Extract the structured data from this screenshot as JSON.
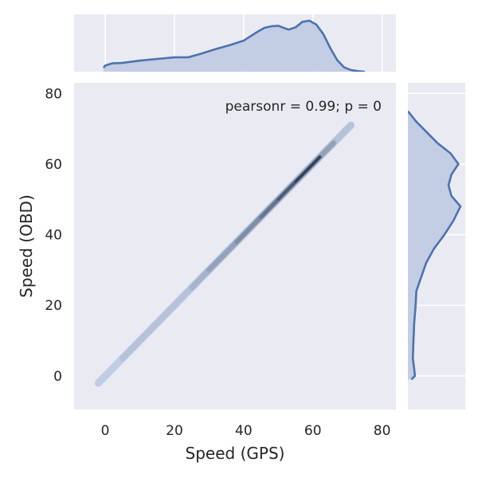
{
  "chart_data": {
    "type": "jointplot",
    "joint": {
      "type": "kde-density",
      "annotation": "pearsonr = 0.99; p = 0",
      "xlabel": "Speed (GPS)",
      "ylabel": "Speed (OBD)",
      "xlim": [
        -9,
        84
      ],
      "ylim": [
        -9.5,
        83
      ],
      "xticks": [
        0,
        20,
        40,
        60,
        80
      ],
      "yticks": [
        0,
        20,
        40,
        60,
        80
      ],
      "density_ridge": [
        {
          "x": -2,
          "y": -2,
          "w": 0.2
        },
        {
          "x": 5,
          "y": 5,
          "w": 0.25
        },
        {
          "x": 15,
          "y": 15,
          "w": 0.3
        },
        {
          "x": 25,
          "y": 25,
          "w": 0.35
        },
        {
          "x": 30,
          "y": 30,
          "w": 0.45
        },
        {
          "x": 38,
          "y": 38,
          "w": 0.6
        },
        {
          "x": 45,
          "y": 45,
          "w": 0.7
        },
        {
          "x": 50,
          "y": 50,
          "w": 0.75
        },
        {
          "x": 55,
          "y": 55,
          "w": 0.85
        },
        {
          "x": 58,
          "y": 58,
          "w": 1.0
        },
        {
          "x": 62,
          "y": 62,
          "w": 0.85
        },
        {
          "x": 66,
          "y": 66,
          "w": 0.5
        },
        {
          "x": 71,
          "y": 71,
          "w": 0.25
        }
      ]
    },
    "marginal_x": {
      "type": "kde",
      "x": [
        -0.5,
        0,
        2,
        5,
        10,
        15,
        20,
        24,
        28,
        32,
        36,
        40,
        44,
        46,
        48,
        50,
        52,
        53,
        55,
        57,
        59,
        61,
        63,
        65,
        67,
        69,
        71,
        73,
        75
      ],
      "density": [
        0.07,
        0.11,
        0.15,
        0.16,
        0.2,
        0.23,
        0.26,
        0.26,
        0.33,
        0.41,
        0.48,
        0.56,
        0.72,
        0.79,
        0.82,
        0.83,
        0.78,
        0.76,
        0.8,
        0.9,
        0.92,
        0.85,
        0.68,
        0.43,
        0.21,
        0.08,
        0.03,
        0.01,
        0.0
      ]
    },
    "marginal_y": {
      "type": "kde",
      "y": [
        -1,
        0,
        2,
        5,
        10,
        15,
        20,
        24,
        28,
        32,
        36,
        40,
        44,
        48,
        51,
        54,
        57,
        60,
        63,
        66,
        69,
        72,
        75
      ],
      "density": [
        0.05,
        0.1,
        0.09,
        0.07,
        0.08,
        0.09,
        0.11,
        0.12,
        0.19,
        0.26,
        0.37,
        0.52,
        0.65,
        0.75,
        0.62,
        0.58,
        0.62,
        0.72,
        0.61,
        0.42,
        0.27,
        0.12,
        0.0
      ]
    },
    "colors": {
      "line": "#4c72b0",
      "fill": "#c1cbe2",
      "panel_bg": "#eaeaf2",
      "grid": "#ffffff",
      "density_low": "#c4d2ea",
      "density_high": "#14203a"
    }
  }
}
